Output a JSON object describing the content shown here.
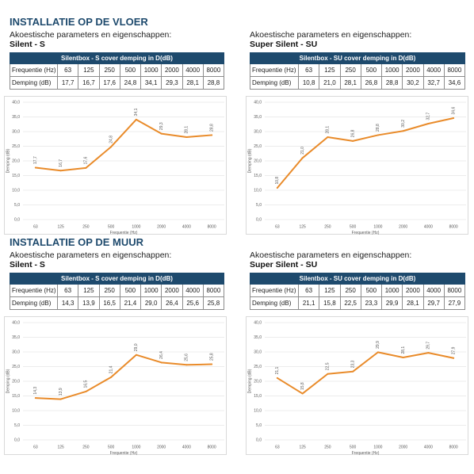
{
  "colors": {
    "brand": "#1e4a6d",
    "line": "#e98b2a"
  },
  "sections": [
    {
      "title": "INSTALLATIE OP DE VLOER",
      "panels": [
        {
          "intro": "Akoestische parameters en eigenschappen:",
          "model": "Silent - S",
          "table": {
            "header": "Silentbox - S cover demping in D(dB)",
            "rows": [
              {
                "label": "Frequentie (Hz)",
                "cells": [
                  "63",
                  "125",
                  "250",
                  "500",
                  "1000",
                  "2000",
                  "4000",
                  "8000"
                ]
              },
              {
                "label": "Demping (dB)",
                "cells": [
                  "17,7",
                  "16,7",
                  "17,6",
                  "24,8",
                  "34,1",
                  "29,3",
                  "28,1",
                  "28,8"
                ]
              }
            ]
          }
        },
        {
          "intro": "Akoestische parameters en eigenschappen:",
          "model": "Super Silent - SU",
          "table": {
            "header": "Silentbox - SU cover demping in D(dB)",
            "rows": [
              {
                "label": "Frequentie (Hz)",
                "cells": [
                  "63",
                  "125",
                  "250",
                  "500",
                  "1000",
                  "2000",
                  "4000",
                  "8000"
                ]
              },
              {
                "label": "Demping (dB)",
                "cells": [
                  "10,8",
                  "21,0",
                  "28,1",
                  "26,8",
                  "28,8",
                  "30,2",
                  "32,7",
                  "34,6"
                ]
              }
            ]
          }
        }
      ]
    },
    {
      "title": "INSTALLATIE OP DE MUUR",
      "panels": [
        {
          "intro": "Akoestische parameters en eigenschappen:",
          "model": "Silent - S",
          "table": {
            "header": "Silentbox - S cover demping in D(dB)",
            "rows": [
              {
                "label": "Frequentie (Hz)",
                "cells": [
                  "63",
                  "125",
                  "250",
                  "500",
                  "1000",
                  "2000",
                  "4000",
                  "8000"
                ]
              },
              {
                "label": "Demping (dB)",
                "cells": [
                  "14,3",
                  "13,9",
                  "16,5",
                  "21,4",
                  "29,0",
                  "26,4",
                  "25,6",
                  "25,8"
                ]
              }
            ]
          }
        },
        {
          "intro": "Akoestische parameters en eigenschappen:",
          "model": "Super Silent - SU",
          "table": {
            "header": "Silentbox - SU cover demping in D(dB)",
            "rows": [
              {
                "label": "Frequentie (Hz)",
                "cells": [
                  "63",
                  "125",
                  "250",
                  "500",
                  "1000",
                  "2000",
                  "4000",
                  "8000"
                ]
              },
              {
                "label": "Demping (dB)",
                "cells": [
                  "21,1",
                  "15,8",
                  "22,5",
                  "23,3",
                  "29,9",
                  "28,1",
                  "29,7",
                  "27,9"
                ]
              }
            ]
          }
        }
      ]
    }
  ],
  "chart_data": [
    {
      "type": "line",
      "categories": [
        "63",
        "125",
        "250",
        "500",
        "1000",
        "2000",
        "4000",
        "8000"
      ],
      "values": [
        17.7,
        16.7,
        17.6,
        24.8,
        34.1,
        29.3,
        28.1,
        28.8
      ],
      "data_labels": [
        "17,7",
        "16,7",
        "17,6",
        "24,8",
        "34,1",
        "29,3",
        "28,1",
        "28,8"
      ],
      "xlabel": "Frequentie (Hz)",
      "ylabel": "Demping (dB)",
      "ylim": [
        0,
        40
      ],
      "yticks": [
        0,
        5,
        10,
        15,
        20,
        25,
        30,
        35,
        40
      ],
      "ytick_labels": [
        "0,0",
        "5,0",
        "10,0",
        "15,0",
        "20,0",
        "25,0",
        "30,0",
        "35,0",
        "40,0"
      ],
      "grid": true,
      "color": "#e98b2a"
    },
    {
      "type": "line",
      "categories": [
        "63",
        "125",
        "250",
        "500",
        "1000",
        "2000",
        "4000",
        "8000"
      ],
      "values": [
        10.8,
        21.0,
        28.1,
        26.8,
        28.8,
        30.2,
        32.7,
        34.6
      ],
      "data_labels": [
        "10,8",
        "21,0",
        "28,1",
        "26,8",
        "28,8",
        "30,2",
        "32,7",
        "34,6"
      ],
      "xlabel": "Frequentie (Hz)",
      "ylabel": "Demping (dB)",
      "ylim": [
        0,
        40
      ],
      "yticks": [
        0,
        5,
        10,
        15,
        20,
        25,
        30,
        35,
        40
      ],
      "ytick_labels": [
        "0,0",
        "5,0",
        "10,0",
        "15,0",
        "20,0",
        "25,0",
        "30,0",
        "35,0",
        "40,0"
      ],
      "grid": true,
      "color": "#e98b2a"
    },
    {
      "type": "line",
      "categories": [
        "63",
        "125",
        "250",
        "500",
        "1000",
        "2000",
        "4000",
        "8000"
      ],
      "values": [
        14.3,
        13.9,
        16.5,
        21.4,
        29.0,
        26.4,
        25.6,
        25.8
      ],
      "data_labels": [
        "14,3",
        "13,9",
        "16,5",
        "21,4",
        "29,0",
        "26,4",
        "25,6",
        "25,8"
      ],
      "xlabel": "Frequentie (Hz)",
      "ylabel": "Demping (dB)",
      "ylim": [
        0,
        40
      ],
      "yticks": [
        0,
        5,
        10,
        15,
        20,
        25,
        30,
        35,
        40
      ],
      "ytick_labels": [
        "0,0",
        "5,0",
        "10,0",
        "15,0",
        "20,0",
        "25,0",
        "30,0",
        "35,0",
        "40,0"
      ],
      "grid": true,
      "color": "#e98b2a"
    },
    {
      "type": "line",
      "categories": [
        "63",
        "125",
        "250",
        "500",
        "1000",
        "2000",
        "4000",
        "8000"
      ],
      "values": [
        21.1,
        15.8,
        22.5,
        23.3,
        29.9,
        28.1,
        29.7,
        27.9
      ],
      "data_labels": [
        "21,1",
        "15,8",
        "22,5",
        "23,3",
        "29,9",
        "28,1",
        "29,7",
        "27,9"
      ],
      "xlabel": "Frequentie (Hz)",
      "ylabel": "Demping (dB)",
      "ylim": [
        0,
        40
      ],
      "yticks": [
        0,
        5,
        10,
        15,
        20,
        25,
        30,
        35,
        40
      ],
      "ytick_labels": [
        "0,0",
        "5,0",
        "10,0",
        "15,0",
        "20,0",
        "25,0",
        "30,0",
        "35,0",
        "40,0"
      ],
      "grid": true,
      "color": "#e98b2a"
    }
  ]
}
